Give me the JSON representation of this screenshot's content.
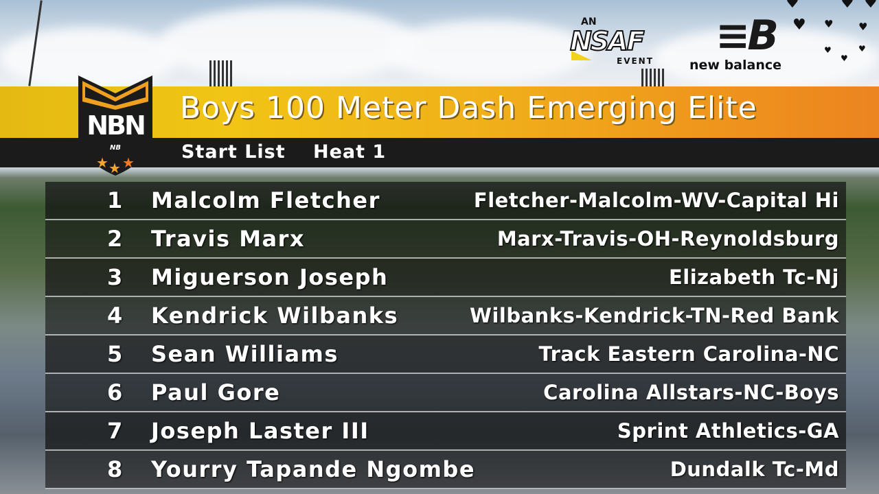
{
  "header": {
    "title": "Boys 100 Meter Dash Emerging Elite",
    "list_label": "Start List",
    "heat_label": "Heat 1"
  },
  "logos": {
    "nbn": "NBN",
    "nsaf_prefix": "AN",
    "nsaf": "NSAF",
    "nsaf_suffix": "EVENT",
    "sponsor": "new balance"
  },
  "colors": {
    "title_bar_start": "#e4b912",
    "title_bar_end": "#ec8420",
    "sub_bar": "#1c1b1c"
  },
  "entries": [
    {
      "lane": "1",
      "name": "Malcolm Fletcher",
      "team": "Fletcher-Malcolm-WV-Capital Hi"
    },
    {
      "lane": "2",
      "name": "Travis Marx",
      "team": "Marx-Travis-OH-Reynoldsburg"
    },
    {
      "lane": "3",
      "name": "Miguerson Joseph",
      "team": "Elizabeth Tc-Nj"
    },
    {
      "lane": "4",
      "name": "Kendrick Wilbanks",
      "team": "Wilbanks-Kendrick-TN-Red Bank"
    },
    {
      "lane": "5",
      "name": "Sean Williams",
      "team": "Track Eastern Carolina-NC"
    },
    {
      "lane": "6",
      "name": "Paul Gore",
      "team": "Carolina Allstars-NC-Boys"
    },
    {
      "lane": "7",
      "name": "Joseph Laster III",
      "team": "Sprint Athletics-GA"
    },
    {
      "lane": "8",
      "name": "Yourry Tapande Ngombe",
      "team": "Dundalk Tc-Md"
    }
  ]
}
